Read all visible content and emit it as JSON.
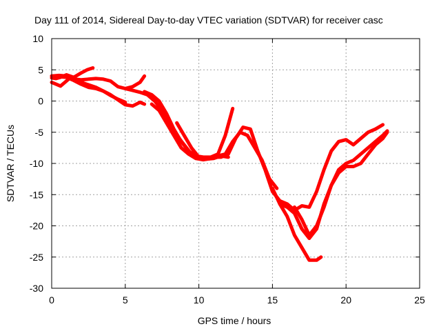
{
  "chart_data": {
    "type": "line",
    "title": "Day 111 of 2014, Sidereal Day-to-day VTEC variation (SDTVAR) for receiver casc",
    "xlabel": "GPS time / hours",
    "ylabel": "SDTVAR / TECUs",
    "xlim": [
      0,
      25
    ],
    "ylim": [
      -30,
      10
    ],
    "xticks": [
      0,
      5,
      10,
      15,
      20,
      25
    ],
    "yticks": [
      10,
      5,
      0,
      -5,
      -10,
      -15,
      -20,
      -25,
      -30
    ],
    "grid": true,
    "legend": "none",
    "line_color": "#ff0000",
    "series": [
      {
        "x": [
          0.0,
          0.3,
          0.6,
          1.0,
          1.5,
          2.0,
          2.4,
          2.8
        ],
        "y": [
          3.7,
          3.6,
          3.8,
          4.2,
          3.8,
          4.5,
          5.0,
          5.3
        ]
      },
      {
        "x": [
          0.0,
          0.3,
          0.6,
          0.9,
          1.2,
          1.6,
          2.0,
          2.5,
          3.0,
          3.5,
          4.0,
          4.5,
          5.0,
          5.5,
          6.0,
          6.3
        ],
        "y": [
          3.0,
          2.7,
          2.4,
          3.0,
          3.6,
          3.5,
          3.4,
          3.5,
          3.6,
          3.5,
          3.2,
          2.3,
          2.0,
          2.3,
          3.0,
          4.0
        ]
      },
      {
        "x": [
          0.0,
          0.5,
          1.0,
          1.5,
          2.0,
          2.5,
          3.0,
          3.5,
          4.0,
          4.5,
          5.0,
          5.5,
          6.0,
          6.3
        ],
        "y": [
          4.0,
          4.1,
          4.0,
          3.5,
          3.0,
          2.6,
          2.2,
          1.6,
          1.0,
          0.2,
          -0.6,
          -0.8,
          -0.2,
          -0.5
        ]
      },
      {
        "x": [
          0.0,
          0.5,
          1.0,
          1.5,
          2.0,
          2.5,
          3.0,
          3.5,
          4.0,
          4.5,
          5.0
        ],
        "y": [
          4.0,
          3.9,
          3.8,
          3.3,
          2.7,
          2.2,
          2.0,
          1.6,
          0.9,
          0.3,
          -0.2
        ]
      },
      {
        "x": [
          5.0,
          5.5,
          6.0,
          6.5,
          7.0,
          7.5,
          8.0,
          8.5,
          9.0,
          9.5,
          10.0,
          10.5,
          11.0,
          11.5,
          12.0
        ],
        "y": [
          2.0,
          1.7,
          1.4,
          1.0,
          0.0,
          -1.5,
          -3.5,
          -5.5,
          -7.0,
          -8.5,
          -9.1,
          -9.3,
          -9.0,
          -8.8,
          -9.0
        ]
      },
      {
        "x": [
          6.3,
          6.8,
          7.3,
          7.8,
          8.3,
          8.8,
          9.3,
          9.8,
          10.3,
          10.8,
          11.3,
          11.8,
          12.3
        ],
        "y": [
          1.5,
          1.0,
          0.0,
          -2.0,
          -4.5,
          -6.5,
          -8.0,
          -8.8,
          -9.0,
          -9.0,
          -8.5,
          -5.5,
          -1.2
        ]
      },
      {
        "x": [
          6.8,
          7.3,
          7.8,
          8.3,
          8.8,
          9.3,
          9.8,
          10.3,
          10.8,
          11.3,
          11.8,
          12.3,
          12.8,
          13.3,
          13.8,
          14.3,
          14.8,
          15.3
        ],
        "y": [
          -0.5,
          -1.5,
          -3.5,
          -5.5,
          -7.5,
          -8.5,
          -9.2,
          -9.4,
          -9.2,
          -8.8,
          -8.5,
          -6.5,
          -5.0,
          -5.5,
          -7.5,
          -9.5,
          -12.5,
          -14.0
        ]
      },
      {
        "x": [
          8.5,
          9.0,
          9.5,
          10.0,
          10.5,
          11.0,
          11.5
        ],
        "y": [
          -3.5,
          -5.5,
          -7.5,
          -9.0,
          -9.3,
          -9.2,
          -8.8
        ]
      },
      {
        "x": [
          11.0,
          11.5,
          12.0,
          12.5,
          13.0,
          13.5,
          14.0,
          14.5,
          15.0,
          15.5,
          16.0,
          16.5,
          17.0,
          17.5,
          18.0,
          18.5,
          19.0,
          19.5,
          20.0,
          20.5,
          21.0,
          21.5,
          22.0,
          22.5
        ],
        "y": [
          -9.0,
          -9.0,
          -8.5,
          -6.0,
          -4.2,
          -4.5,
          -8.0,
          -11.0,
          -14.5,
          -16.0,
          -16.5,
          -17.5,
          -16.8,
          -17.0,
          -14.5,
          -11.0,
          -8.0,
          -6.5,
          -6.2,
          -7.0,
          -6.0,
          -5.0,
          -4.5,
          -3.8
        ]
      },
      {
        "x": [
          15.0,
          15.5,
          16.0,
          16.5,
          17.0,
          17.5,
          18.0,
          18.5,
          19.0,
          19.5,
          20.0,
          20.5,
          21.0,
          21.5,
          22.0,
          22.5,
          22.8
        ],
        "y": [
          -14.0,
          -16.5,
          -17.0,
          -18.0,
          -20.5,
          -22.0,
          -20.5,
          -16.5,
          -13.5,
          -11.5,
          -10.5,
          -10.5,
          -10.0,
          -8.5,
          -7.0,
          -6.0,
          -5.0
        ]
      },
      {
        "x": [
          15.5,
          16.0,
          16.5,
          17.0,
          17.5,
          18.0,
          18.3
        ],
        "y": [
          -16.5,
          -18.5,
          -21.5,
          -23.5,
          -25.5,
          -25.5,
          -25.0
        ]
      },
      {
        "x": [
          16.5,
          17.0,
          17.5,
          18.0,
          18.5,
          19.0,
          19.5,
          20.0,
          20.5,
          21.0,
          21.5,
          22.0,
          22.5,
          22.8
        ],
        "y": [
          -17.0,
          -19.0,
          -21.5,
          -20.0,
          -17.0,
          -13.5,
          -11.0,
          -10.0,
          -9.5,
          -8.5,
          -7.5,
          -6.5,
          -5.5,
          -4.8
        ]
      }
    ]
  }
}
